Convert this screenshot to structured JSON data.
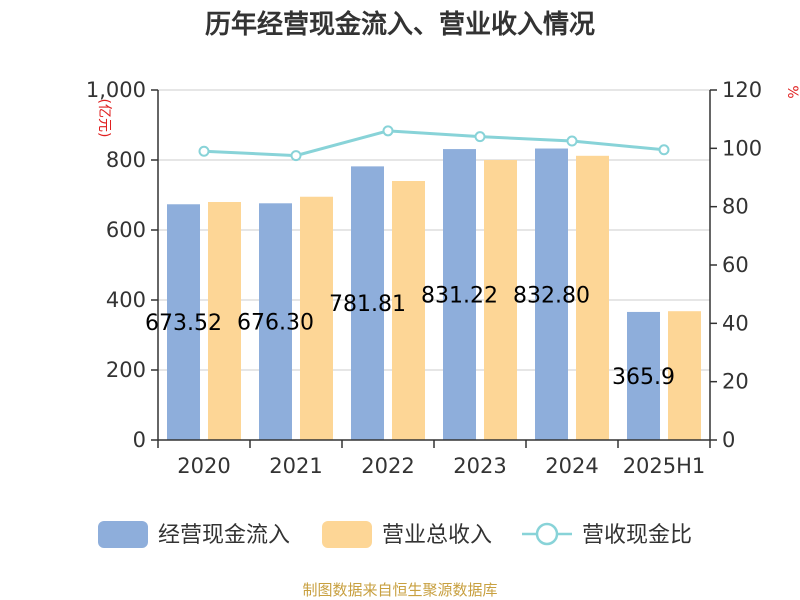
{
  "title": "历年经营现金流入、营业收入情况",
  "source": "制图数据来自恒生聚源数据库",
  "y_left_unit": "(亿元)",
  "y_right_unit": "%",
  "colors": {
    "cash_inflow": "#8eaedb",
    "revenue": "#fdd696",
    "ratio": "#88d3d8",
    "axis": "#333333",
    "grid": "#cccccc"
  },
  "chart_data": {
    "type": "bar",
    "title": "历年经营现金流入、营业收入情况",
    "categories": [
      "2020",
      "2021",
      "2022",
      "2023",
      "2024",
      "2025H1"
    ],
    "ylim_left": [
      0,
      1000
    ],
    "yticks_left": [
      "0",
      "200",
      "400",
      "600",
      "800",
      "1,000"
    ],
    "ylim_right": [
      0,
      120
    ],
    "yticks_right": [
      "0",
      "20",
      "40",
      "60",
      "80",
      "100",
      "120"
    ],
    "grid": true,
    "legend_position": "bottom",
    "series": [
      {
        "name": "经营现金流入",
        "type": "bar",
        "axis": "left",
        "values": [
          673.52,
          676.3,
          781.81,
          831.22,
          832.8,
          365.9
        ],
        "labels": [
          "673.52",
          "676.30",
          "781.81",
          "831.22",
          "832.80",
          "365.9"
        ]
      },
      {
        "name": "营业总收入",
        "type": "bar",
        "axis": "left",
        "values": [
          680,
          695,
          740,
          800,
          812,
          368
        ]
      },
      {
        "name": "营收现金比",
        "type": "line",
        "axis": "right",
        "values": [
          99,
          97.5,
          106,
          104,
          102.5,
          99.5
        ]
      }
    ]
  }
}
